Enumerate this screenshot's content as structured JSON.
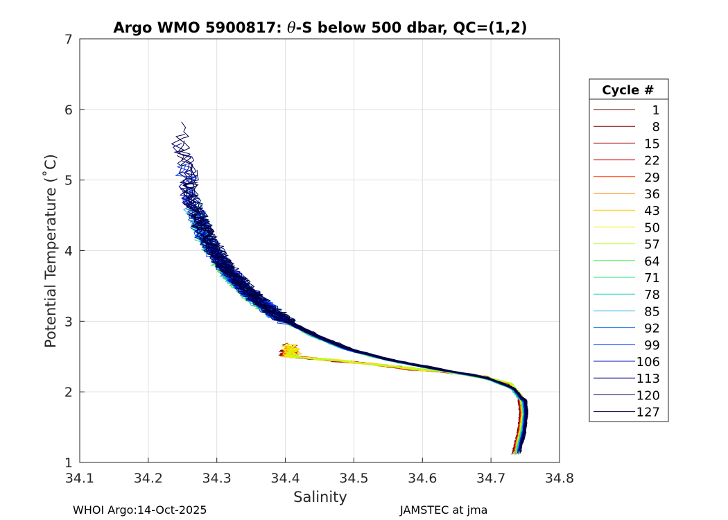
{
  "chart_data": {
    "type": "line",
    "title_parts": {
      "pre": "Argo WMO 5900817: ",
      "theta": "θ",
      "post": "-S below 500 dbar,  QC=(1,2)"
    },
    "xlabel": "Salinity",
    "ylabel": "Potential Temperature (˚C)",
    "xlim": [
      34.1,
      34.8
    ],
    "ylim": [
      1,
      7
    ],
    "xticks": [
      "34.1",
      "34.2",
      "34.3",
      "34.4",
      "34.5",
      "34.6",
      "34.7",
      "34.8"
    ],
    "yticks": [
      "1",
      "2",
      "3",
      "4",
      "5",
      "6",
      "7"
    ],
    "grid": true,
    "legend": {
      "title": "Cycle #",
      "placement": "right-outside",
      "entries": [
        "1",
        "8",
        "15",
        "22",
        "29",
        "36",
        "43",
        "50",
        "57",
        "64",
        "71",
        "78",
        "85",
        "92",
        "99",
        "106",
        "113",
        "120",
        "127"
      ],
      "colors": [
        "#6a0000",
        "#7c0000",
        "#a80000",
        "#d60000",
        "#ff3a00",
        "#ff8000",
        "#ffcc00",
        "#f0f000",
        "#b0ff30",
        "#50f050",
        "#20e080",
        "#20d0c0",
        "#20a8e8",
        "#1070e0",
        "#0040ff",
        "#0010c0",
        "#000090",
        "#000050",
        "#000040"
      ]
    },
    "series_shape": {
      "x": [
        34.736,
        34.745,
        34.748,
        34.745,
        34.73,
        34.69,
        34.62,
        34.55,
        34.48,
        34.42
      ],
      "y": [
        1.1,
        1.45,
        1.7,
        1.95,
        2.12,
        2.22,
        2.3,
        2.38,
        2.45,
        2.5
      ]
    },
    "upper_branch": {
      "x": [
        34.745,
        34.73,
        34.69,
        34.62,
        34.55,
        34.49,
        34.44,
        34.39,
        34.35,
        34.31,
        34.28,
        34.26,
        34.25,
        34.24
      ],
      "y": [
        1.85,
        2.05,
        2.2,
        2.32,
        2.45,
        2.6,
        2.8,
        3.05,
        3.35,
        3.75,
        4.2,
        4.7,
        5.2,
        5.6
      ]
    }
  },
  "footer": {
    "left": "WHOI Argo:14-Oct-2025",
    "right": "JAMSTEC at jma"
  }
}
